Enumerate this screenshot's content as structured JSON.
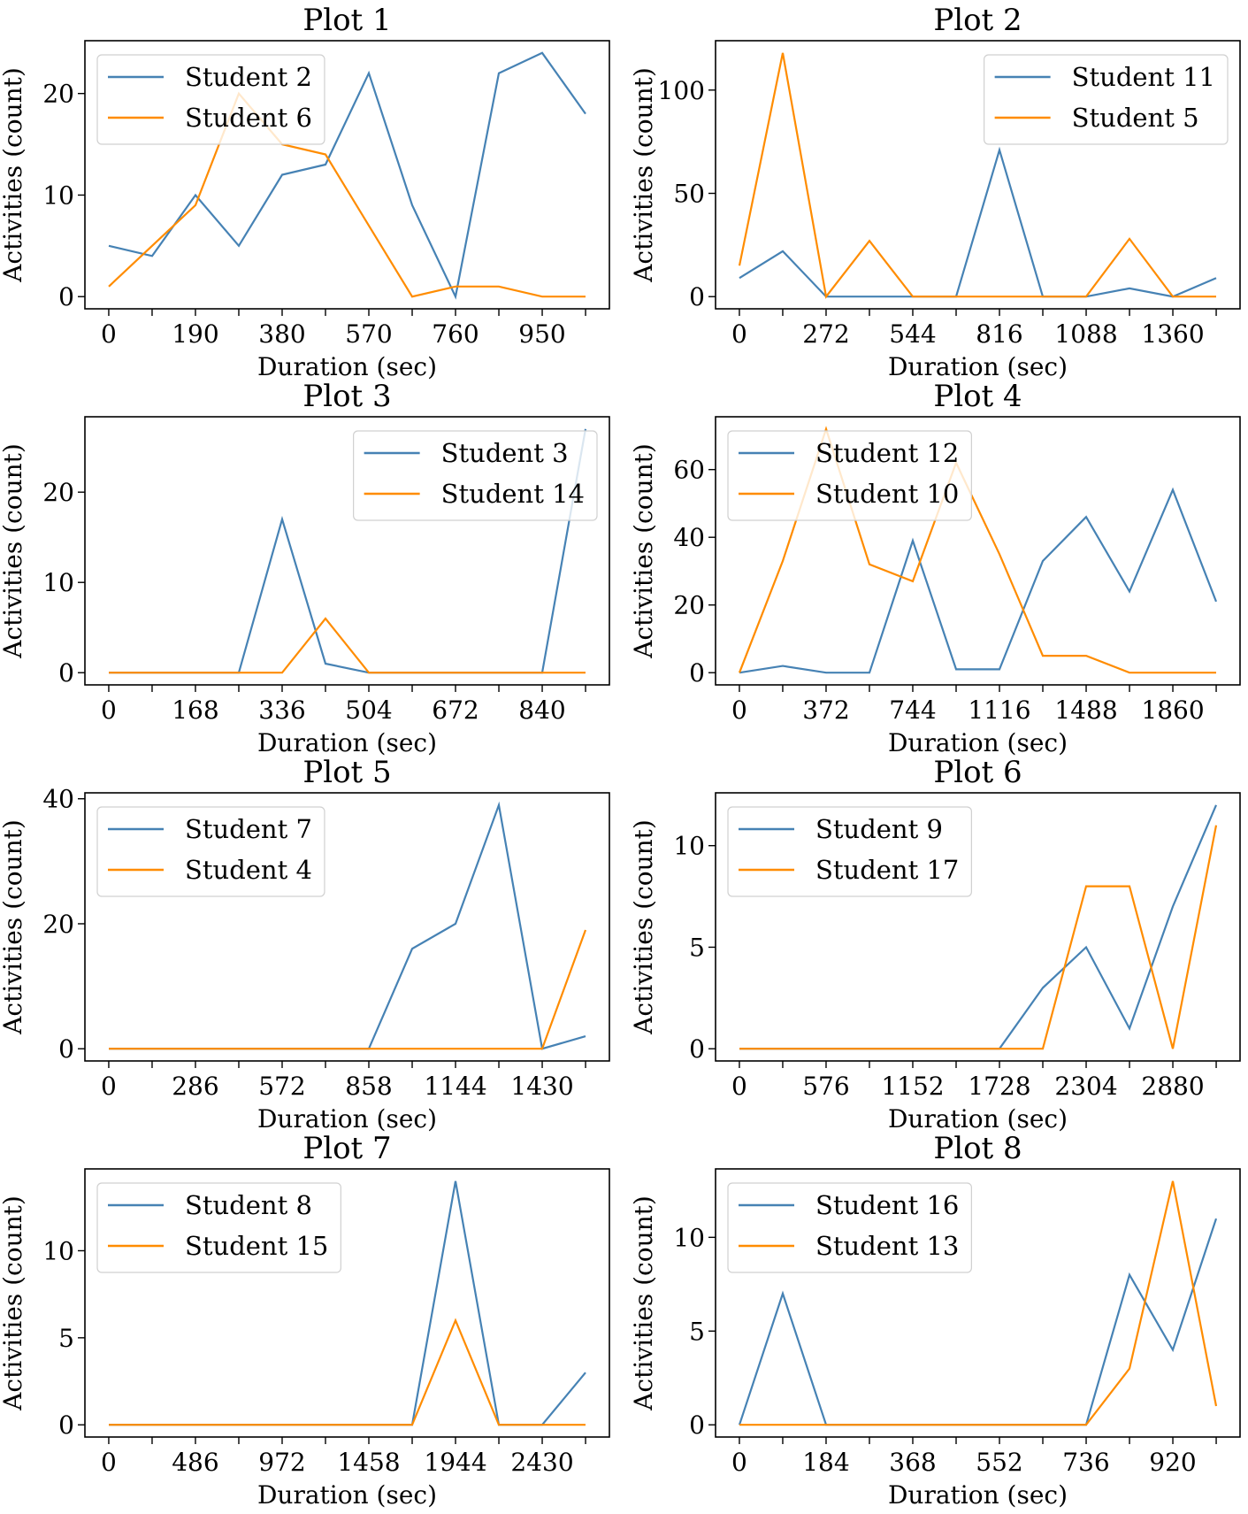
{
  "chart_data": [
    {
      "type": "line",
      "title": "Plot 1",
      "xlabel": "Duration (sec)",
      "ylabel": "Activities (count)",
      "x": [
        0,
        95,
        190,
        285,
        380,
        475,
        570,
        665,
        760,
        855,
        950,
        1045
      ],
      "xticks": [
        0,
        95,
        190,
        285,
        380,
        475,
        570,
        665,
        760,
        855,
        950,
        1045
      ],
      "xtick_labels": [
        "0",
        "",
        "190",
        "",
        "380",
        "",
        "570",
        "",
        "760",
        "",
        "950",
        ""
      ],
      "yticks": [
        0,
        10,
        20
      ],
      "ylim": [
        -1.2,
        25.2
      ],
      "legend_position": "upper-left",
      "series": [
        {
          "name": "Student 2",
          "color": "#4682b4",
          "values": [
            5,
            4,
            10,
            5,
            12,
            13,
            22,
            9,
            0,
            22,
            24,
            18
          ]
        },
        {
          "name": "Student 6",
          "color": "#ff8c00",
          "values": [
            1,
            5,
            9,
            20,
            15,
            14,
            7,
            0,
            1,
            1,
            0,
            0
          ]
        }
      ]
    },
    {
      "type": "line",
      "title": "Plot 2",
      "xlabel": "Duration (sec)",
      "ylabel": "Activities (count)",
      "x": [
        0,
        136,
        272,
        408,
        544,
        680,
        816,
        952,
        1088,
        1224,
        1360,
        1496
      ],
      "xticks": [
        0,
        136,
        272,
        408,
        544,
        680,
        816,
        952,
        1088,
        1224,
        1360,
        1496
      ],
      "xtick_labels": [
        "0",
        "",
        "272",
        "",
        "544",
        "",
        "816",
        "",
        "1088",
        "",
        "1360",
        ""
      ],
      "yticks": [
        0,
        50,
        100
      ],
      "ylim": [
        -5.9,
        123.9
      ],
      "legend_position": "upper-right",
      "series": [
        {
          "name": "Student 11",
          "color": "#4682b4",
          "values": [
            9,
            22,
            0,
            0,
            0,
            0,
            71,
            0,
            0,
            4,
            0,
            9
          ]
        },
        {
          "name": "Student 5",
          "color": "#ff8c00",
          "values": [
            15,
            118,
            0,
            27,
            0,
            0,
            0,
            0,
            0,
            28,
            0,
            0
          ]
        }
      ]
    },
    {
      "type": "line",
      "title": "Plot 3",
      "xlabel": "Duration (sec)",
      "ylabel": "Activities (count)",
      "x": [
        0,
        84,
        168,
        252,
        336,
        420,
        504,
        588,
        672,
        756,
        840,
        924
      ],
      "xticks": [
        0,
        84,
        168,
        252,
        336,
        420,
        504,
        588,
        672,
        756,
        840,
        924
      ],
      "xtick_labels": [
        "0",
        "",
        "168",
        "",
        "336",
        "",
        "504",
        "",
        "672",
        "",
        "840",
        ""
      ],
      "yticks": [
        0,
        10,
        20
      ],
      "ylim": [
        -1.35,
        28.35
      ],
      "legend_position": "upper-right",
      "series": [
        {
          "name": "Student 3",
          "color": "#4682b4",
          "values": [
            0,
            0,
            0,
            0,
            17,
            1,
            0,
            0,
            0,
            0,
            0,
            27
          ]
        },
        {
          "name": "Student 14",
          "color": "#ff8c00",
          "values": [
            0,
            0,
            0,
            0,
            0,
            6,
            0,
            0,
            0,
            0,
            0,
            0
          ]
        }
      ]
    },
    {
      "type": "line",
      "title": "Plot 4",
      "xlabel": "Duration (sec)",
      "ylabel": "Activities (count)",
      "x": [
        0,
        186,
        372,
        558,
        744,
        930,
        1116,
        1302,
        1488,
        1674,
        1860,
        2046
      ],
      "xticks": [
        0,
        186,
        372,
        558,
        744,
        930,
        1116,
        1302,
        1488,
        1674,
        1860,
        2046
      ],
      "xtick_labels": [
        "0",
        "",
        "372",
        "",
        "744",
        "",
        "1116",
        "",
        "1488",
        "",
        "1860",
        ""
      ],
      "yticks": [
        0,
        20,
        40,
        60
      ],
      "ylim": [
        -3.6,
        75.6
      ],
      "legend_position": "upper-left",
      "series": [
        {
          "name": "Student 12",
          "color": "#4682b4",
          "values": [
            0,
            2,
            0,
            0,
            39,
            1,
            1,
            33,
            46,
            24,
            54,
            21
          ]
        },
        {
          "name": "Student 10",
          "color": "#ff8c00",
          "values": [
            0,
            33,
            72,
            32,
            27,
            62,
            35,
            5,
            5,
            0,
            0,
            0
          ]
        }
      ]
    },
    {
      "type": "line",
      "title": "Plot 5",
      "xlabel": "Duration (sec)",
      "ylabel": "Activities (count)",
      "x": [
        0,
        143,
        286,
        429,
        572,
        715,
        858,
        1001,
        1144,
        1287,
        1430,
        1573
      ],
      "xticks": [
        0,
        143,
        286,
        429,
        572,
        715,
        858,
        1001,
        1144,
        1287,
        1430,
        1573
      ],
      "xtick_labels": [
        "0",
        "",
        "286",
        "",
        "572",
        "",
        "858",
        "",
        "1144",
        "",
        "1430",
        ""
      ],
      "yticks": [
        0,
        20,
        40
      ],
      "ylim": [
        -1.95,
        40.95
      ],
      "legend_position": "upper-left",
      "series": [
        {
          "name": "Student 7",
          "color": "#4682b4",
          "values": [
            0,
            0,
            0,
            0,
            0,
            0,
            0,
            16,
            20,
            39,
            0,
            2
          ]
        },
        {
          "name": "Student 4",
          "color": "#ff8c00",
          "values": [
            0,
            0,
            0,
            0,
            0,
            0,
            0,
            0,
            0,
            0,
            0,
            19
          ]
        }
      ]
    },
    {
      "type": "line",
      "title": "Plot 6",
      "xlabel": "Duration (sec)",
      "ylabel": "Activities (count)",
      "x": [
        0,
        288,
        576,
        864,
        1152,
        1440,
        1728,
        2016,
        2304,
        2592,
        2880,
        3168
      ],
      "xticks": [
        0,
        288,
        576,
        864,
        1152,
        1440,
        1728,
        2016,
        2304,
        2592,
        2880,
        3168
      ],
      "xtick_labels": [
        "0",
        "",
        "576",
        "",
        "1152",
        "",
        "1728",
        "",
        "2304",
        "",
        "2880",
        ""
      ],
      "yticks": [
        0,
        5,
        10
      ],
      "ylim": [
        -0.6,
        12.6
      ],
      "legend_position": "upper-left",
      "series": [
        {
          "name": "Student 9",
          "color": "#4682b4",
          "values": [
            0,
            0,
            0,
            0,
            0,
            0,
            0,
            3,
            5,
            1,
            7,
            12
          ]
        },
        {
          "name": "Student 17",
          "color": "#ff8c00",
          "values": [
            0,
            0,
            0,
            0,
            0,
            0,
            0,
            0,
            8,
            8,
            0,
            11
          ]
        }
      ]
    },
    {
      "type": "line",
      "title": "Plot 7",
      "xlabel": "Duration (sec)",
      "ylabel": "Activities (count)",
      "x": [
        0,
        243,
        486,
        729,
        972,
        1215,
        1458,
        1701,
        1944,
        2187,
        2430,
        2673
      ],
      "xticks": [
        0,
        243,
        486,
        729,
        972,
        1215,
        1458,
        1701,
        1944,
        2187,
        2430,
        2673
      ],
      "xtick_labels": [
        "0",
        "",
        "486",
        "",
        "972",
        "",
        "1458",
        "",
        "1944",
        "",
        "2430",
        ""
      ],
      "yticks": [
        0,
        5,
        10
      ],
      "ylim": [
        -0.7,
        14.7
      ],
      "legend_position": "upper-left",
      "series": [
        {
          "name": "Student 8",
          "color": "#4682b4",
          "values": [
            0,
            0,
            0,
            0,
            0,
            0,
            0,
            0,
            14,
            0,
            0,
            3
          ]
        },
        {
          "name": "Student 15",
          "color": "#ff8c00",
          "values": [
            0,
            0,
            0,
            0,
            0,
            0,
            0,
            0,
            6,
            0,
            0,
            0
          ]
        }
      ]
    },
    {
      "type": "line",
      "title": "Plot 8",
      "xlabel": "Duration (sec)",
      "ylabel": "Activities (count)",
      "x": [
        0,
        92,
        184,
        276,
        368,
        460,
        552,
        644,
        736,
        828,
        920,
        1012
      ],
      "xticks": [
        0,
        92,
        184,
        276,
        368,
        460,
        552,
        644,
        736,
        828,
        920,
        1012
      ],
      "xtick_labels": [
        "0",
        "",
        "184",
        "",
        "368",
        "",
        "552",
        "",
        "736",
        "",
        "920",
        ""
      ],
      "yticks": [
        0,
        5,
        10
      ],
      "ylim": [
        -0.65,
        13.65
      ],
      "legend_position": "upper-left",
      "series": [
        {
          "name": "Student 16",
          "color": "#4682b4",
          "values": [
            0,
            7,
            0,
            0,
            0,
            0,
            0,
            0,
            0,
            8,
            4,
            11
          ]
        },
        {
          "name": "Student 13",
          "color": "#ff8c00",
          "values": [
            0,
            0,
            0,
            0,
            0,
            0,
            0,
            0,
            0,
            3,
            13,
            1
          ]
        }
      ]
    }
  ]
}
